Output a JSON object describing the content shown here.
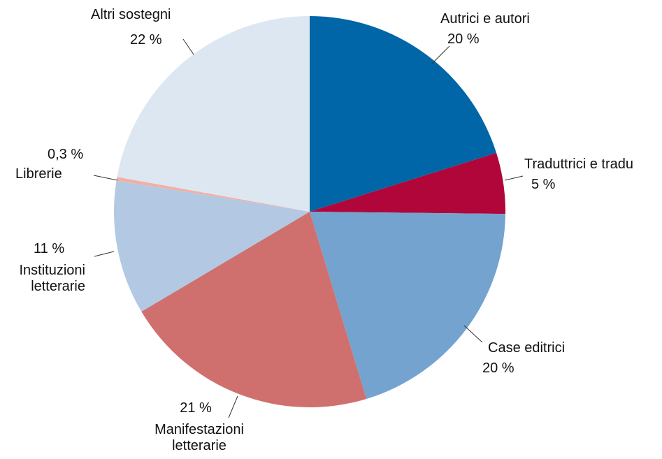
{
  "chart_data": {
    "type": "pie",
    "categories": [
      "Autrici e autori",
      "Traduttrici e tradu",
      "Case editrici",
      "Manifestazioni\nletterarie",
      "Instituzioni\nletterarie",
      "Librerie",
      "Altri sostegni"
    ],
    "values": [
      20,
      5,
      20,
      21,
      11,
      0.3,
      22
    ],
    "value_labels": [
      "20 %",
      "5 %",
      "20 %",
      "21 %",
      "11 %",
      "0,3 %",
      "22 %"
    ],
    "colors": [
      "#0066a8",
      "#b0063a",
      "#74a3cf",
      "#cf706e",
      "#b3c9e3",
      "#f1b0a3",
      "#dde7f2"
    ]
  }
}
